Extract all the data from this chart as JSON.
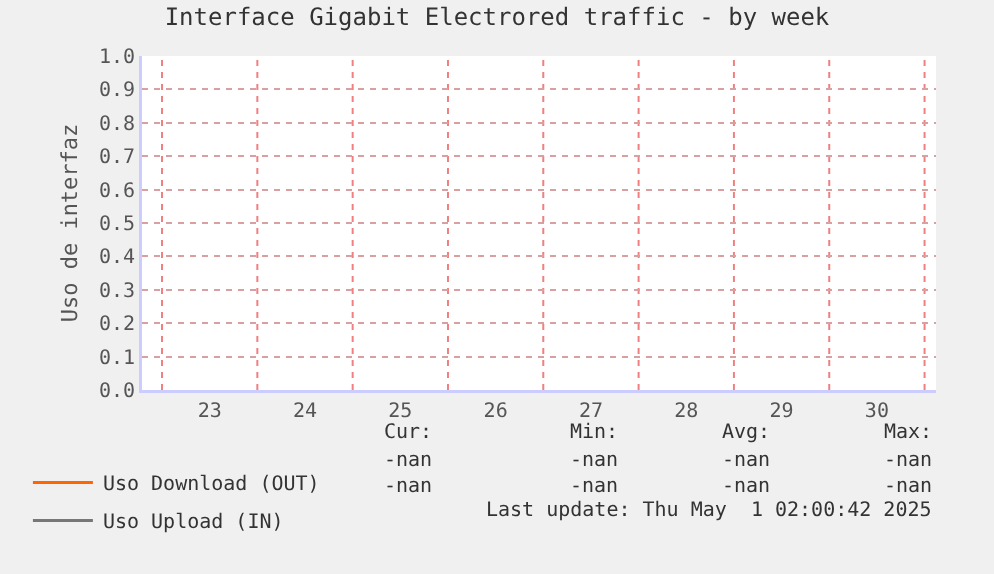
{
  "chart_data": {
    "type": "line",
    "title": "Interface Gigabit Electrored traffic - by week",
    "ylabel": "Uso de interfaz",
    "categories": [
      "23",
      "24",
      "25",
      "26",
      "27",
      "28",
      "29",
      "30"
    ],
    "series": [
      {
        "name": "Uso Download (OUT)",
        "color": "#ff6600",
        "values": [
          null,
          null,
          null,
          null,
          null,
          null,
          null,
          null
        ]
      },
      {
        "name": "Uso Upload (IN)",
        "color": "#777777",
        "values": [
          null,
          null,
          null,
          null,
          null,
          null,
          null,
          null
        ]
      }
    ],
    "ylim": [
      0,
      1.0
    ],
    "yticks": [
      {
        "value": 0,
        "label": "0.0"
      },
      {
        "value": 0.1,
        "label": "0.1"
      },
      {
        "value": 0.2,
        "label": "0.2"
      },
      {
        "value": 0.3,
        "label": "0.3"
      },
      {
        "value": 0.4,
        "label": "0.4"
      },
      {
        "value": 0.5,
        "label": "0.5"
      },
      {
        "value": 0.6,
        "label": "0.6"
      },
      {
        "value": 0.7,
        "label": "0.7"
      },
      {
        "value": 0.8,
        "label": "0.8"
      },
      {
        "value": 0.9,
        "label": "0.9"
      },
      {
        "value": 1.0,
        "label": "1.0"
      }
    ],
    "grid": true,
    "legend": "bottom left",
    "marker": "none",
    "line_style": "solid",
    "annotations": [
      "Cur:",
      "Min:",
      "Avg:",
      "Max:",
      "-nan",
      "-nan",
      "-nan",
      "-nan",
      "-nan",
      "-nan",
      "-nan",
      "-nan",
      "Last update: Thu May  1 02:00:42 2025"
    ]
  }
}
